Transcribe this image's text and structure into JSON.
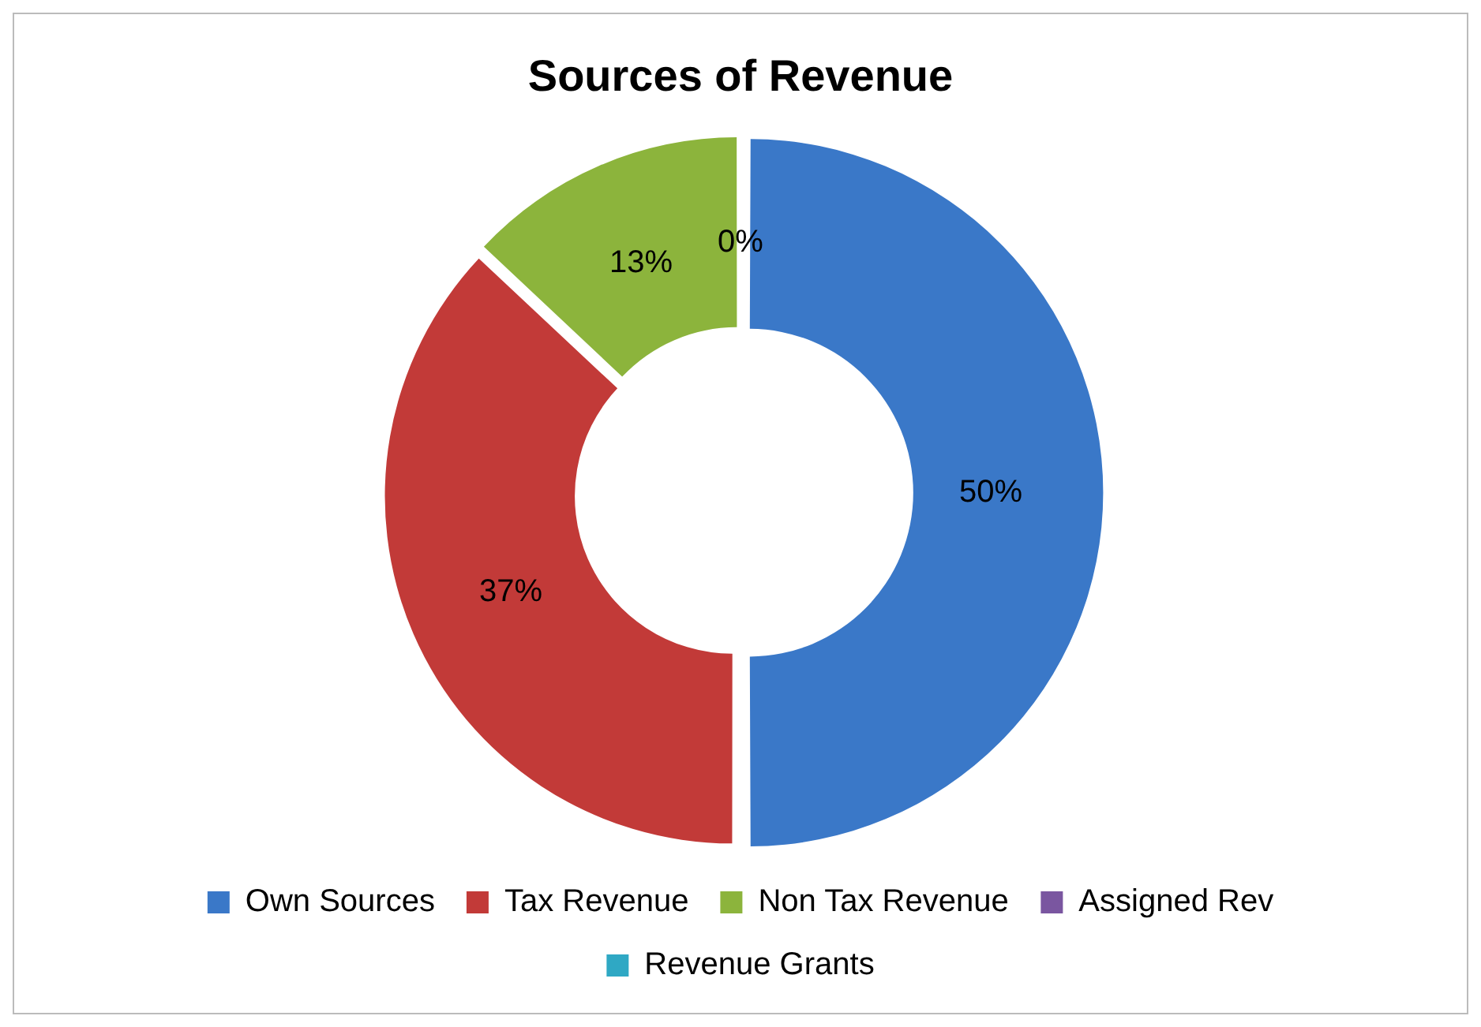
{
  "chart_data": {
    "type": "donut",
    "title": "Sources of Revenue",
    "categories": [
      "Own Sources",
      "Tax Revenue",
      "Non Tax Revenue",
      "Assigned Rev",
      "Revenue Grants"
    ],
    "values": [
      50,
      37,
      13,
      0,
      0
    ],
    "colors": [
      "#3a78c8",
      "#c23a38",
      "#8cb43c",
      "#7a56a0",
      "#2fa8c4"
    ],
    "value_labels": [
      "50%",
      "37%",
      "13%",
      "0%",
      null
    ],
    "legend": "bottom"
  }
}
